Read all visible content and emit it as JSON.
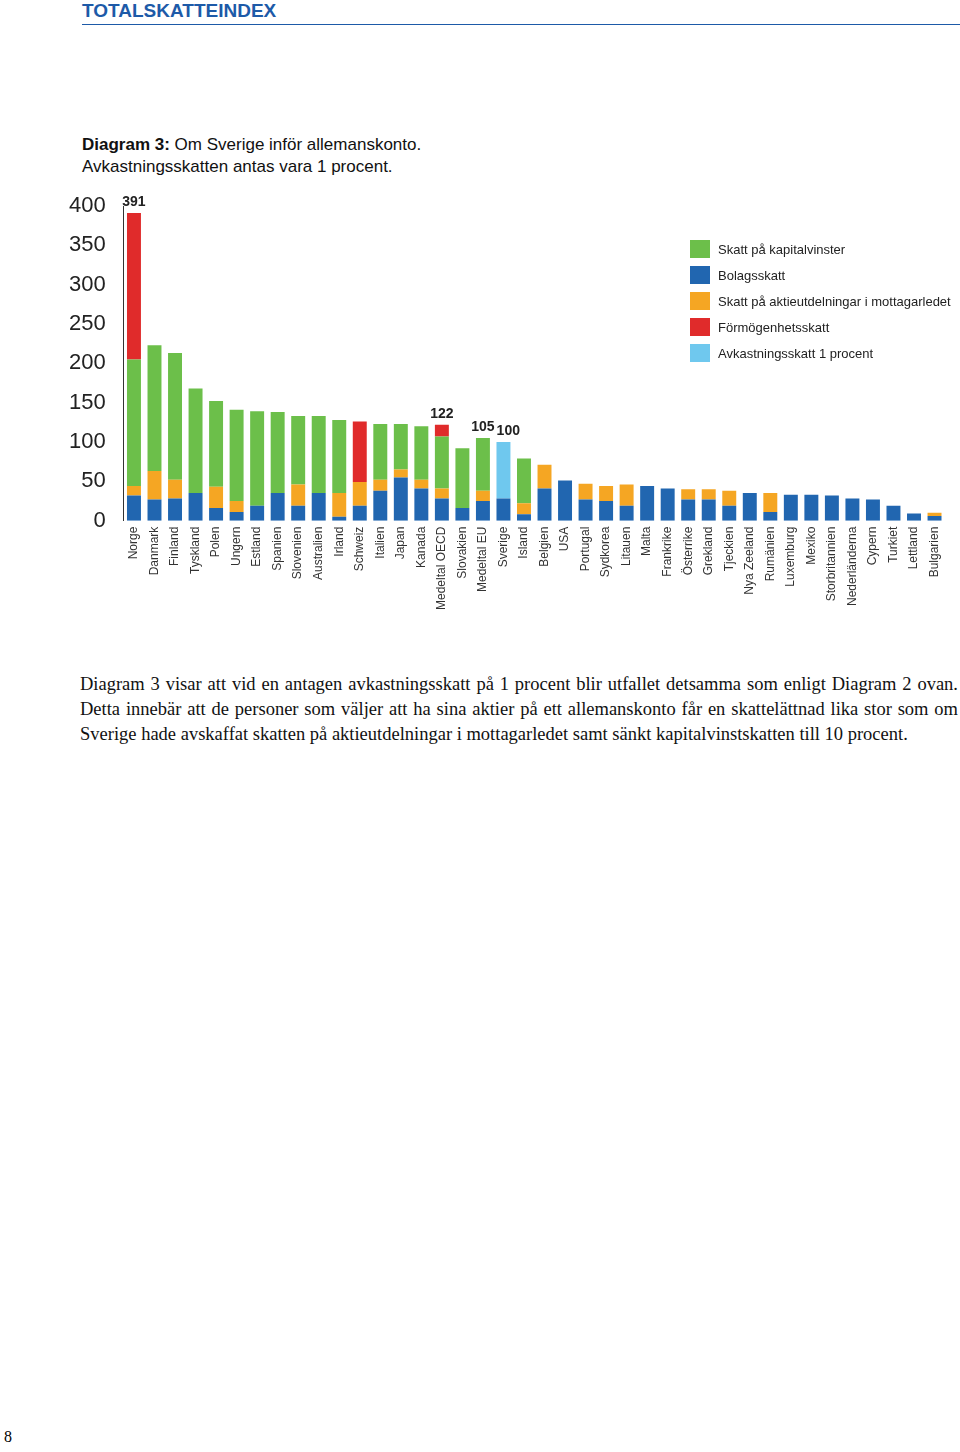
{
  "header": "TOTALSKATTEINDEX",
  "chart_data": {
    "type": "bar",
    "title": "Diagram 3: Om Sverige inför allemanskonto.",
    "subtitle": "Avkastningsskatten antas vara 1 procent.",
    "stacked": true,
    "grid": false,
    "legend": "upper right",
    "categories": [
      "Norge",
      "Danmark",
      "Finland",
      "Tyskland",
      "Polen",
      "Ungern",
      "Estland",
      "Spanien",
      "Slovenien",
      "Australien",
      "Irland",
      "Schweiz",
      "Italien",
      "Japan",
      "Kanada",
      "Medeltal OECD",
      "Slovakien",
      "Medeltal EU",
      "Sverige",
      "Island",
      "Belgien",
      "USA",
      "Portugal",
      "Sydkorea",
      "Litauen",
      "Malta",
      "Frankrike",
      "Österrike",
      "Grekland",
      "Tjeckien",
      "Nya Zeeland",
      "Rumänien",
      "Luxemburg",
      "Mexiko",
      "Storbritannien",
      "Nederländerna",
      "Cypern",
      "Turkiet",
      "Lettland",
      "Bulgarien"
    ],
    "series": [
      {
        "name": "Skatt på kapitalvinster",
        "color": "#6cbf4a",
        "values": [
          161,
          160,
          161,
          133,
          109,
          116,
          120,
          103,
          87,
          98,
          93,
          0,
          71,
          58,
          68,
          66,
          76,
          67,
          0,
          57,
          0,
          0,
          0,
          0,
          0,
          0,
          0,
          0,
          0,
          0,
          0,
          0,
          0,
          0,
          0,
          0,
          0,
          0,
          0,
          0
        ]
      },
      {
        "name": "Bolagsskatt",
        "color": "#2166b0",
        "values": [
          32,
          27,
          28,
          35,
          16,
          11,
          19,
          35,
          19,
          35,
          5,
          19,
          38,
          55,
          41,
          28,
          16,
          25,
          28,
          8,
          41,
          51,
          27,
          25,
          19,
          44,
          41,
          27,
          27,
          19,
          35,
          11,
          33,
          33,
          32,
          28,
          27,
          19,
          9,
          6
        ]
      },
      {
        "name": "Skatt på aktieutdelningar i mottagarledet",
        "color": "#f5a623",
        "values": [
          12,
          36,
          24,
          0,
          27,
          14,
          0,
          0,
          27,
          0,
          30,
          30,
          14,
          10,
          11,
          13,
          0,
          13,
          0,
          14,
          30,
          0,
          20,
          19,
          27,
          0,
          0,
          13,
          13,
          19,
          0,
          24,
          0,
          0,
          0,
          0,
          0,
          0,
          0,
          4
        ]
      },
      {
        "name": "Förmögenhetsskatt",
        "color": "#e02b2b",
        "values": [
          186,
          0,
          0,
          0,
          0,
          0,
          0,
          0,
          0,
          0,
          0,
          77,
          0,
          0,
          0,
          15,
          0,
          0,
          0,
          0,
          0,
          0,
          0,
          0,
          0,
          0,
          0,
          0,
          0,
          0,
          0,
          0,
          0,
          0,
          0,
          0,
          0,
          0,
          0,
          0
        ]
      },
      {
        "name": "Avkastningsskatt 1 procent",
        "color": "#6fc8ee",
        "values": [
          0,
          0,
          0,
          0,
          0,
          0,
          0,
          0,
          0,
          0,
          0,
          0,
          0,
          0,
          0,
          0,
          0,
          0,
          72,
          0,
          0,
          0,
          0,
          0,
          0,
          0,
          0,
          0,
          0,
          0,
          0,
          0,
          0,
          0,
          0,
          0,
          0,
          0,
          0,
          0
        ]
      }
    ],
    "annotations": [
      {
        "category": "Norge",
        "value": 391,
        "label": "391"
      },
      {
        "category": "Medeltal OECD",
        "value": 122,
        "label": "122"
      },
      {
        "category": "Medeltal EU",
        "value": 105,
        "label": "105"
      },
      {
        "category": "Sverige",
        "value": 100,
        "label": "100"
      }
    ],
    "ylim": [
      0,
      400
    ],
    "yticks": [
      0,
      50,
      100,
      150,
      200,
      250,
      300,
      350,
      400
    ]
  },
  "paragraph": "Diagram 3 visar att vid en antagen avkastningsskatt på 1 procent blir utfallet detsamma som enligt Diagram 2 ovan. Detta innebär att de personer som väljer att ha sina aktier på ett allemanskonto får en skattelättnad lika stor som om Sverige hade avskaffat skatten på aktieutdelningar i mottagarledet samt sänkt kapitalvinstskatten till 10 procent.",
  "page_number": "8"
}
